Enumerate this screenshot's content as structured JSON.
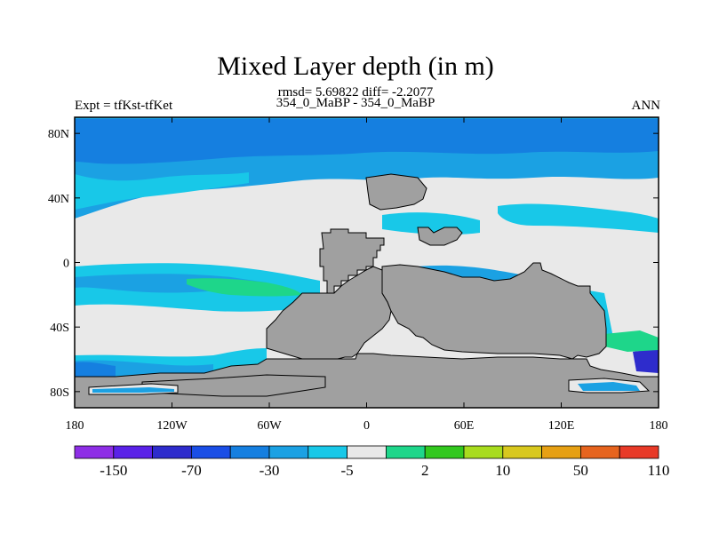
{
  "title": "Mixed Layer depth (in m)",
  "stats": "rmsd= 5.69822 diff= -2.2077",
  "experiments": "354_0_MaBP - 354_0_MaBP",
  "expt_label": "Expt = tfKst-tfKet",
  "season": "ANN",
  "axes": {
    "lat_ticks": [
      "80N",
      "40N",
      "0",
      "40S",
      "80S"
    ],
    "lon_ticks": [
      "180",
      "120W",
      "60W",
      "0",
      "60E",
      "120E",
      "180"
    ]
  },
  "colorbar": {
    "colors": [
      "#8e2ee6",
      "#5a22e8",
      "#2e2ccc",
      "#1a4ee6",
      "#157fe0",
      "#1ba1e3",
      "#18c8e8",
      "#e9e9e9",
      "#1ed68a",
      "#32c81e",
      "#a8dc1e",
      "#d8c81e",
      "#e6a014",
      "#e6641e",
      "#e83a28"
    ],
    "labels": [
      "-150",
      "-70",
      "-30",
      "-5",
      "2",
      "10",
      "50",
      "110"
    ]
  },
  "map_colors": {
    "land": "#a0a0a0",
    "dark_blue": "#157fe0",
    "mid_blue": "#1ba1e3",
    "cyan": "#18c8e8",
    "neutral": "#e9e9e9",
    "green": "#1ed68a",
    "lime": "#a8dc1e",
    "yellow": "#d8c81e",
    "orange": "#e6a014"
  }
}
